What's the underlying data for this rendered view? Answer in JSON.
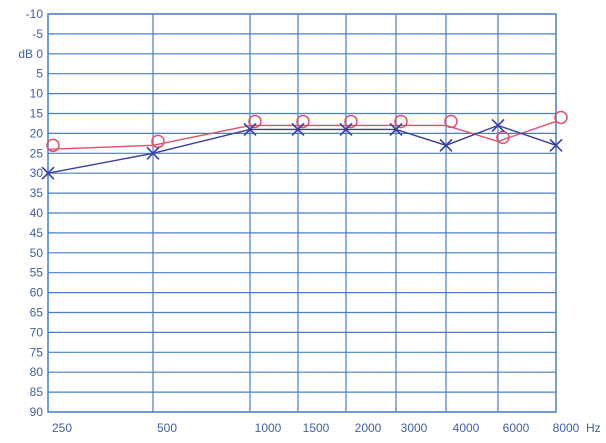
{
  "colors": {
    "grid": "#4a7ec9",
    "tick_text": "#3f5fa8",
    "right_ear": "#e0506a",
    "left_ear": "#3b3f9c"
  },
  "chart_data": {
    "type": "line",
    "chart_kind": "audiogram",
    "y_unit_label": "dB",
    "x_unit_label": "Hz",
    "x_ticks": [
      "250",
      "500",
      "1000",
      "1500",
      "2000",
      "3000",
      "4000",
      "6000",
      "8000"
    ],
    "y_ticks": [
      "-10",
      "-5",
      "0",
      "5",
      "10",
      "15",
      "20",
      "25",
      "30",
      "35",
      "40",
      "45",
      "50",
      "55",
      "60",
      "65",
      "70",
      "75",
      "80",
      "85",
      "90"
    ],
    "ylim": [
      -10,
      90
    ],
    "y_inverted": true,
    "grid": true,
    "series": [
      {
        "marker": "circle",
        "color": "#e0506a",
        "x": [
          "250",
          "500",
          "1000",
          "1500",
          "2000",
          "3000",
          "4000",
          "6000",
          "8000"
        ],
        "values": [
          24,
          23,
          18,
          18,
          18,
          18,
          18,
          22,
          17
        ]
      },
      {
        "marker": "cross",
        "color": "#3b3f9c",
        "x": [
          "250",
          "500",
          "1000",
          "1500",
          "2000",
          "3000",
          "4000",
          "6000",
          "8000"
        ],
        "values": [
          30,
          25,
          19,
          19,
          19,
          19,
          23,
          18,
          23
        ]
      }
    ]
  }
}
